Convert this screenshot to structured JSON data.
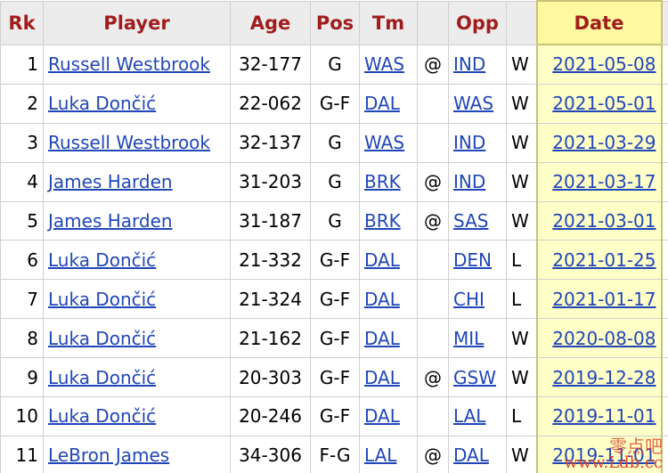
{
  "table": {
    "headers": [
      "Rk",
      "Player",
      "Age",
      "Pos",
      "Tm",
      null,
      "Opp",
      null,
      "Date"
    ],
    "rows": [
      [
        "1",
        "Russell Westbrook",
        "32-177",
        "G",
        "WAS",
        "@",
        "IND",
        "W",
        "2021-05-08"
      ],
      [
        "2",
        "Luka Dončić",
        "22-062",
        "G-F",
        "DAL",
        null,
        "WAS",
        "W",
        "2021-05-01"
      ],
      [
        "3",
        "Russell Westbrook",
        "32-137",
        "G",
        "WAS",
        null,
        "IND",
        "W",
        "2021-03-29"
      ],
      [
        "4",
        "James Harden",
        "31-203",
        "G",
        "BRK",
        "@",
        "IND",
        "W",
        "2021-03-17"
      ],
      [
        "5",
        "James Harden",
        "31-187",
        "G",
        "BRK",
        "@",
        "SAS",
        "W",
        "2021-03-01"
      ],
      [
        "6",
        "Luka Dončić",
        "21-332",
        "G-F",
        "DAL",
        null,
        "DEN",
        "L",
        "2021-01-25"
      ],
      [
        "7",
        "Luka Dončić",
        "21-324",
        "G-F",
        "DAL",
        null,
        "CHI",
        "L",
        "2021-01-17"
      ],
      [
        "8",
        "Luka Dončić",
        "21-162",
        "G-F",
        "DAL",
        null,
        "MIL",
        "W",
        "2020-08-08"
      ],
      [
        "9",
        "Luka Dončić",
        "20-303",
        "G-F",
        "DAL",
        "@",
        "GSW",
        "W",
        "2019-12-28"
      ],
      [
        "10",
        "Luka Dončić",
        "20-246",
        "G-F",
        "DAL",
        null,
        "LAL",
        "L",
        "2019-11-01"
      ],
      [
        "11",
        "LeBron James",
        "34-306",
        "F-G",
        "LAL",
        "@",
        "DAL",
        "W",
        "2019-11-01"
      ]
    ]
  },
  "watermark": [
    "零点吧",
    "www.Ldb.cc"
  ]
}
